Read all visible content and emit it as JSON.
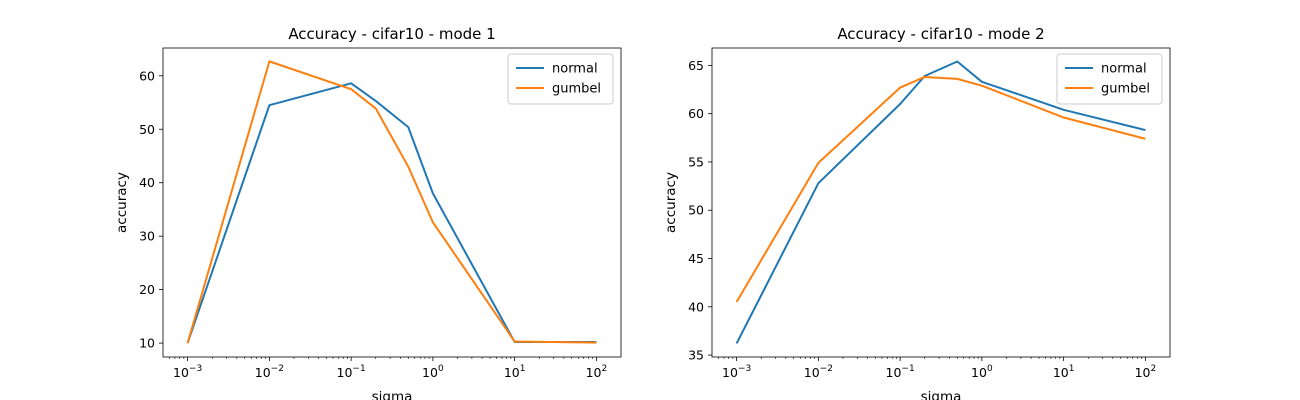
{
  "chart_data": [
    {
      "type": "line",
      "title": "Accuracy - cifar10 - mode 1",
      "xlabel": "sigma",
      "ylabel": "accuracy",
      "xscale": "log",
      "x": [
        0.001,
        0.01,
        0.1,
        0.2,
        0.5,
        1,
        10,
        100
      ],
      "xlim": [
        0.0005,
        200
      ],
      "xticks": [
        {
          "value": 0.001,
          "base": "10",
          "exp": "−3"
        },
        {
          "value": 0.01,
          "base": "10",
          "exp": "−2"
        },
        {
          "value": 0.1,
          "base": "10",
          "exp": "−1"
        },
        {
          "value": 1,
          "base": "10",
          "exp": "0"
        },
        {
          "value": 10,
          "base": "10",
          "exp": "1"
        },
        {
          "value": 100,
          "base": "10",
          "exp": "2"
        }
      ],
      "ylim": [
        7.4,
        65.2
      ],
      "yticks": [
        10,
        20,
        30,
        40,
        50,
        60
      ],
      "legend_position": "top-right",
      "series": [
        {
          "name": "normal",
          "color": "#1f77b4",
          "values": [
            10.0,
            54.5,
            58.6,
            55.3,
            50.4,
            38.0,
            10.2,
            10.2
          ]
        },
        {
          "name": "gumbel",
          "color": "#ff7f0e",
          "values": [
            10.0,
            62.7,
            57.5,
            53.9,
            43.0,
            32.6,
            10.3,
            10.1
          ]
        }
      ]
    },
    {
      "type": "line",
      "title": "Accuracy - cifar10 - mode 2",
      "xlabel": "sigma",
      "ylabel": "accuracy",
      "xscale": "log",
      "x": [
        0.001,
        0.01,
        0.1,
        0.2,
        0.5,
        1,
        10,
        100
      ],
      "xlim": [
        0.0005,
        200
      ],
      "xticks": [
        {
          "value": 0.001,
          "base": "10",
          "exp": "−3"
        },
        {
          "value": 0.01,
          "base": "10",
          "exp": "−2"
        },
        {
          "value": 0.1,
          "base": "10",
          "exp": "−1"
        },
        {
          "value": 1,
          "base": "10",
          "exp": "0"
        },
        {
          "value": 10,
          "base": "10",
          "exp": "1"
        },
        {
          "value": 100,
          "base": "10",
          "exp": "2"
        }
      ],
      "ylim": [
        34.8,
        66.8
      ],
      "yticks": [
        35,
        40,
        45,
        50,
        55,
        60,
        65
      ],
      "legend_position": "top-right",
      "series": [
        {
          "name": "normal",
          "color": "#1f77b4",
          "values": [
            36.2,
            52.8,
            61.0,
            63.9,
            65.4,
            63.3,
            60.4,
            58.3
          ]
        },
        {
          "name": "gumbel",
          "color": "#ff7f0e",
          "values": [
            40.5,
            54.9,
            62.7,
            63.8,
            63.6,
            62.9,
            59.6,
            57.4
          ]
        }
      ]
    }
  ]
}
